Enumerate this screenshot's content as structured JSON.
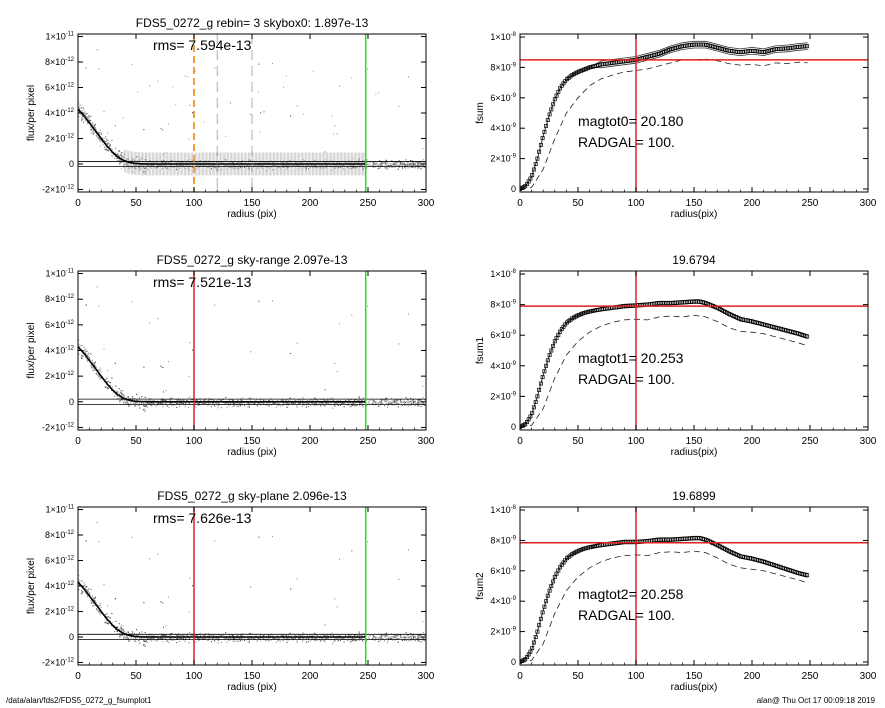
{
  "footer": {
    "path": "/data/alan/fds2/FDS5_0272_g_fsumplot1",
    "stamp": "alan@  Thu Oct 17 00:09:18 2019"
  },
  "colors": {
    "green_marker": "#22dd22",
    "red_marker": "#e02020",
    "orange_marker": "#f08000",
    "scatter": "#9a9a9a",
    "profile": "#000000"
  },
  "chart_data": [
    {
      "type": "scatter",
      "panel": "left-top",
      "title": "FDS5_0272_g rebin= 3    skybox0:  1.897e-13",
      "annotation": "rms= 7.594e-13",
      "xlabel": "radius (pix)",
      "ylabel": "flux/per pixel",
      "xlim": [
        0,
        300
      ],
      "ylim": [
        -2.2e-12,
        1.02e-11
      ],
      "x_ticks": [
        "0",
        "50",
        "100",
        "150",
        "200",
        "250",
        "300"
      ],
      "y_ticks": [
        {
          "v": -2e-12,
          "label": [
            "-2×10",
            "-12"
          ]
        },
        {
          "v": 0,
          "label": [
            "0",
            ""
          ]
        },
        {
          "v": 2e-12,
          "label": [
            "2×10",
            "-12"
          ]
        },
        {
          "v": 4e-12,
          "label": [
            "4×10",
            "-12"
          ]
        },
        {
          "v": 6e-12,
          "label": [
            "6×10",
            "-12"
          ]
        },
        {
          "v": 8e-12,
          "label": [
            "8×10",
            "-12"
          ]
        },
        {
          "v": 1e-11,
          "label": [
            "1×10",
            "-11"
          ]
        }
      ],
      "vlines": [
        {
          "x": 100,
          "color": "orange",
          "style": "dashed"
        },
        {
          "x": 120,
          "color": "gray",
          "style": "dashed"
        },
        {
          "x": 150,
          "color": "gray",
          "style": "dashed"
        },
        {
          "x": 248,
          "color": "green",
          "style": "solid"
        }
      ],
      "hlines": [
        1.9e-13,
        -1.9e-13
      ],
      "profile": {
        "x": [
          0,
          5,
          10,
          15,
          20,
          25,
          30,
          35,
          40,
          45,
          50,
          55,
          60,
          70,
          80,
          100,
          120,
          150,
          200,
          248
        ],
        "y": [
          4.3e-12,
          3.8e-12,
          3.2e-12,
          2.6e-12,
          2e-12,
          1.4e-12,
          9e-13,
          5e-13,
          2.5e-13,
          1e-13,
          4e-14,
          1e-14,
          0,
          0,
          0,
          0,
          0,
          0,
          0,
          0
        ]
      },
      "error_bars": true
    },
    {
      "type": "line",
      "panel": "right-top",
      "title": "",
      "annotations": [
        "magtot0=  20.180",
        "RADGAL=    100."
      ],
      "xlabel": "radius(pix)",
      "ylabel": "fsum",
      "xlim": [
        0,
        300
      ],
      "ylim": [
        -2e-10,
        1.02e-08
      ],
      "x_ticks": [
        "0",
        "50",
        "100",
        "150",
        "200",
        "250",
        "300"
      ],
      "y_ticks": [
        {
          "v": 0,
          "label": [
            "0",
            ""
          ]
        },
        {
          "v": 2e-09,
          "label": [
            "2×10",
            "-9"
          ]
        },
        {
          "v": 4e-09,
          "label": [
            "4×10",
            "-9"
          ]
        },
        {
          "v": 6e-09,
          "label": [
            "6×10",
            "-9"
          ]
        },
        {
          "v": 8e-09,
          "label": [
            "8×10",
            "-9"
          ]
        },
        {
          "v": 1e-08,
          "label": [
            "1×10",
            "-8"
          ]
        }
      ],
      "red_v": 100,
      "red_h": 8.5e-09,
      "series": [
        {
          "values_x": [
            0,
            5,
            10,
            15,
            20,
            25,
            30,
            35,
            40,
            45,
            50,
            55,
            60,
            70,
            80,
            90,
            100,
            110,
            120,
            130,
            140,
            150,
            160,
            170,
            180,
            190,
            200,
            210,
            220,
            230,
            240,
            248
          ],
          "values_y": [
            0,
            2e-10,
            8e-10,
            2e-09,
            3.5e-09,
            4.8e-09,
            5.9e-09,
            6.7e-09,
            7.2e-09,
            7.5e-09,
            7.7e-09,
            7.85e-09,
            8e-09,
            8.2e-09,
            8.3e-09,
            8.4e-09,
            8.5e-09,
            8.7e-09,
            8.9e-09,
            9.2e-09,
            9.4e-09,
            9.5e-09,
            9.5e-09,
            9.3e-09,
            9.1e-09,
            9e-09,
            9.1e-09,
            9e-09,
            9.2e-09,
            9.25e-09,
            9.35e-09,
            9.4e-09
          ],
          "band": 2.2e-10
        },
        {
          "dashed": true,
          "values_x": [
            0,
            10,
            20,
            30,
            40,
            50,
            60,
            70,
            80,
            90,
            100,
            110,
            120,
            130,
            140,
            150,
            160,
            170,
            180,
            190,
            200,
            210,
            220,
            230,
            240,
            248
          ],
          "values_y": [
            0,
            1e-10,
            1.3e-09,
            3.3e-09,
            5e-09,
            6e-09,
            6.8e-09,
            7.25e-09,
            7.5e-09,
            7.7e-09,
            7.8e-09,
            7.9e-09,
            8.1e-09,
            8.3e-09,
            8.5e-09,
            8.5e-09,
            8.55e-09,
            8.45e-09,
            8.25e-09,
            8.15e-09,
            8.2e-09,
            8.1e-09,
            8.3e-09,
            8.25e-09,
            8.35e-09,
            8.3e-09
          ]
        }
      ]
    },
    {
      "type": "scatter",
      "panel": "left-middle",
      "title": "FDS5_0272_g sky-range  2.097e-13",
      "annotation": "rms= 7.521e-13",
      "xlabel": "radius (pix)",
      "ylabel": "flux/per pixel",
      "xlim": [
        0,
        300
      ],
      "ylim": [
        -2.2e-12,
        1.02e-11
      ],
      "x_ticks": [
        "0",
        "50",
        "100",
        "150",
        "200",
        "250",
        "300"
      ],
      "y_ticks": [
        {
          "v": -2e-12,
          "label": [
            "-2×10",
            "-12"
          ]
        },
        {
          "v": 0,
          "label": [
            "0",
            ""
          ]
        },
        {
          "v": 2e-12,
          "label": [
            "2×10",
            "-12"
          ]
        },
        {
          "v": 4e-12,
          "label": [
            "4×10",
            "-12"
          ]
        },
        {
          "v": 6e-12,
          "label": [
            "6×10",
            "-12"
          ]
        },
        {
          "v": 8e-12,
          "label": [
            "8×10",
            "-12"
          ]
        },
        {
          "v": 1e-11,
          "label": [
            "1×10",
            "-11"
          ]
        }
      ],
      "vlines": [
        {
          "x": 100,
          "color": "red",
          "style": "solid"
        },
        {
          "x": 248,
          "color": "green",
          "style": "solid"
        }
      ],
      "hlines": [
        2.1e-13,
        -2.1e-13
      ],
      "profile": {
        "x": [
          0,
          5,
          10,
          15,
          20,
          25,
          30,
          35,
          40,
          45,
          50,
          55,
          60,
          70,
          80,
          100,
          120,
          150,
          200,
          248
        ],
        "y": [
          4.3e-12,
          3.8e-12,
          3.2e-12,
          2.6e-12,
          2e-12,
          1.4e-12,
          9e-13,
          5e-13,
          2.5e-13,
          1e-13,
          4e-14,
          1e-14,
          0,
          0,
          0,
          0,
          0,
          0,
          0,
          0
        ]
      },
      "error_bars": false
    },
    {
      "type": "line",
      "panel": "right-middle",
      "title": "19.6794",
      "annotations": [
        "magtot1=  20.253",
        "RADGAL=    100."
      ],
      "xlabel": "radius(pix)",
      "ylabel": "fsum1",
      "xlim": [
        0,
        300
      ],
      "ylim": [
        -2e-10,
        1.02e-08
      ],
      "x_ticks": [
        "0",
        "50",
        "100",
        "150",
        "200",
        "250",
        "300"
      ],
      "y_ticks": [
        {
          "v": 0,
          "label": [
            "0",
            ""
          ]
        },
        {
          "v": 2e-09,
          "label": [
            "2×10",
            "-9"
          ]
        },
        {
          "v": 4e-09,
          "label": [
            "4×10",
            "-9"
          ]
        },
        {
          "v": 6e-09,
          "label": [
            "6×10",
            "-9"
          ]
        },
        {
          "v": 8e-09,
          "label": [
            "8×10",
            "-9"
          ]
        },
        {
          "v": 1e-08,
          "label": [
            "1×10",
            "-8"
          ]
        }
      ],
      "red_v": 100,
      "red_h": 7.9e-09,
      "series": [
        {
          "values_x": [
            0,
            5,
            10,
            15,
            20,
            25,
            30,
            35,
            40,
            45,
            50,
            55,
            60,
            70,
            80,
            90,
            100,
            110,
            120,
            130,
            140,
            150,
            155,
            160,
            170,
            180,
            190,
            200,
            210,
            220,
            230,
            240,
            248
          ],
          "values_y": [
            0,
            2e-10,
            8e-10,
            2e-09,
            3.4e-09,
            4.6e-09,
            5.6e-09,
            6.3e-09,
            6.8e-09,
            7.1e-09,
            7.3e-09,
            7.45e-09,
            7.55e-09,
            7.7e-09,
            7.8e-09,
            7.9e-09,
            7.95e-09,
            8e-09,
            8.1e-09,
            8.1e-09,
            8.15e-09,
            8.2e-09,
            8.2e-09,
            8.1e-09,
            7.8e-09,
            7.4e-09,
            7.05e-09,
            6.9e-09,
            6.7e-09,
            6.5e-09,
            6.3e-09,
            6.1e-09,
            5.9e-09
          ],
          "band": 1.2e-10
        },
        {
          "dashed": true,
          "values_x": [
            0,
            10,
            20,
            30,
            40,
            50,
            60,
            70,
            80,
            90,
            100,
            110,
            120,
            130,
            140,
            150,
            160,
            170,
            180,
            190,
            200,
            210,
            220,
            230,
            240,
            248
          ],
          "values_y": [
            0,
            1e-10,
            1.2e-09,
            3.2e-09,
            4.7e-09,
            5.6e-09,
            6.2e-09,
            6.6e-09,
            6.85e-09,
            7e-09,
            7.05e-09,
            7e-09,
            7.2e-09,
            7.25e-09,
            7.2e-09,
            7.3e-09,
            7.2e-09,
            6.9e-09,
            6.5e-09,
            6.25e-09,
            6.2e-09,
            6.1e-09,
            5.9e-09,
            5.7e-09,
            5.5e-09,
            5.3e-09
          ]
        }
      ]
    },
    {
      "type": "scatter",
      "panel": "left-bottom",
      "title": "FDS5_0272_g sky-plane  2.096e-13",
      "annotation": "rms= 7.626e-13",
      "xlabel": "radius (pix)",
      "ylabel": "flux/per pixel",
      "xlim": [
        0,
        300
      ],
      "ylim": [
        -2.2e-12,
        1.02e-11
      ],
      "x_ticks": [
        "0",
        "50",
        "100",
        "150",
        "200",
        "250",
        "300"
      ],
      "y_ticks": [
        {
          "v": -2e-12,
          "label": [
            "-2×10",
            "-12"
          ]
        },
        {
          "v": 0,
          "label": [
            "0",
            ""
          ]
        },
        {
          "v": 2e-12,
          "label": [
            "2×10",
            "-12"
          ]
        },
        {
          "v": 4e-12,
          "label": [
            "4×10",
            "-12"
          ]
        },
        {
          "v": 6e-12,
          "label": [
            "6×10",
            "-12"
          ]
        },
        {
          "v": 8e-12,
          "label": [
            "8×10",
            "-12"
          ]
        },
        {
          "v": 1e-11,
          "label": [
            "1×10",
            "-11"
          ]
        }
      ],
      "vlines": [
        {
          "x": 100,
          "color": "red",
          "style": "solid"
        },
        {
          "x": 248,
          "color": "green",
          "style": "solid"
        }
      ],
      "hlines": [
        2.1e-13,
        -2.1e-13
      ],
      "profile": {
        "x": [
          0,
          5,
          10,
          15,
          20,
          25,
          30,
          35,
          40,
          45,
          50,
          55,
          60,
          70,
          80,
          100,
          120,
          150,
          200,
          248
        ],
        "y": [
          4.3e-12,
          3.8e-12,
          3.2e-12,
          2.6e-12,
          2e-12,
          1.4e-12,
          9e-13,
          5e-13,
          2.5e-13,
          1e-13,
          4e-14,
          1e-14,
          0,
          0,
          0,
          0,
          0,
          0,
          0,
          0
        ]
      },
      "error_bars": false
    },
    {
      "type": "line",
      "panel": "right-bottom",
      "title": "19.6899",
      "annotations": [
        "magtot2=  20.258",
        "RADGAL=    100."
      ],
      "xlabel": "radius(pix)",
      "ylabel": "fsum2",
      "xlim": [
        0,
        300
      ],
      "ylim": [
        -2e-10,
        1.02e-08
      ],
      "x_ticks": [
        "0",
        "50",
        "100",
        "150",
        "200",
        "250",
        "300"
      ],
      "y_ticks": [
        {
          "v": 0,
          "label": [
            "0",
            ""
          ]
        },
        {
          "v": 2e-09,
          "label": [
            "2×10",
            "-9"
          ]
        },
        {
          "v": 4e-09,
          "label": [
            "4×10",
            "-9"
          ]
        },
        {
          "v": 6e-09,
          "label": [
            "6×10",
            "-9"
          ]
        },
        {
          "v": 8e-09,
          "label": [
            "8×10",
            "-9"
          ]
        },
        {
          "v": 1e-08,
          "label": [
            "1×10",
            "-8"
          ]
        }
      ],
      "red_v": 100,
      "red_h": 7.85e-09,
      "series": [
        {
          "values_x": [
            0,
            5,
            10,
            15,
            20,
            25,
            30,
            35,
            40,
            45,
            50,
            55,
            60,
            70,
            80,
            90,
            100,
            110,
            120,
            130,
            140,
            150,
            155,
            160,
            170,
            180,
            190,
            200,
            210,
            220,
            230,
            240,
            248
          ],
          "values_y": [
            0,
            2e-10,
            8e-10,
            2e-09,
            3.4e-09,
            4.6e-09,
            5.6e-09,
            6.3e-09,
            6.8e-09,
            7.1e-09,
            7.3e-09,
            7.45e-09,
            7.55e-09,
            7.7e-09,
            7.8e-09,
            7.9e-09,
            7.9e-09,
            7.95e-09,
            8.05e-09,
            8.05e-09,
            8.1e-09,
            8.15e-09,
            8.15e-09,
            8.05e-09,
            7.7e-09,
            7.3e-09,
            6.95e-09,
            6.8e-09,
            6.6e-09,
            6.35e-09,
            6.1e-09,
            5.85e-09,
            5.7e-09
          ],
          "band": 1.2e-10
        },
        {
          "dashed": true,
          "values_x": [
            0,
            10,
            20,
            30,
            40,
            50,
            60,
            70,
            80,
            90,
            100,
            110,
            120,
            130,
            140,
            150,
            160,
            170,
            180,
            190,
            200,
            210,
            220,
            230,
            240,
            248
          ],
          "values_y": [
            0,
            1e-10,
            1.2e-09,
            3.2e-09,
            4.7e-09,
            5.6e-09,
            6.2e-09,
            6.6e-09,
            6.85e-09,
            7e-09,
            7.05e-09,
            7e-09,
            7.2e-09,
            7.25e-09,
            7.2e-09,
            7.3e-09,
            7.2e-09,
            6.85e-09,
            6.45e-09,
            6.2e-09,
            6.1e-09,
            6e-09,
            5.8e-09,
            5.6e-09,
            5.4e-09,
            5.2e-09
          ]
        }
      ]
    }
  ]
}
